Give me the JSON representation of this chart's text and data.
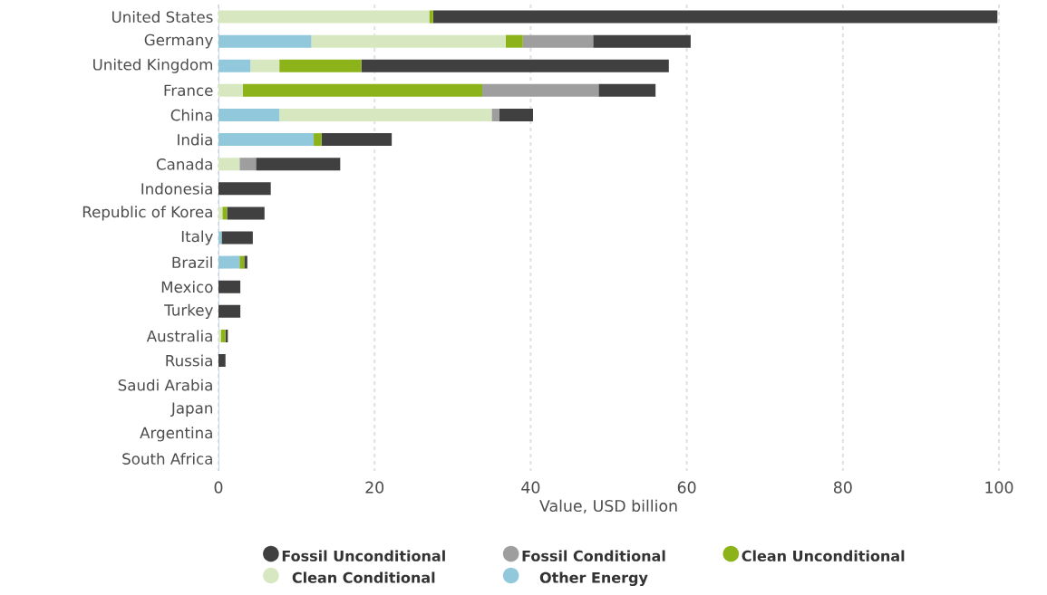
{
  "chart_data": {
    "type": "bar",
    "orientation": "horizontal",
    "stacked": true,
    "categories": [
      "United States",
      "Germany",
      "United Kingdom",
      "France",
      "China",
      "India",
      "Canada",
      "Indonesia",
      "Republic of Korea",
      "Italy",
      "Brazil",
      "Mexico",
      "Turkey",
      "Australia",
      "Russia",
      "Saudi Arabia",
      "Japan",
      "Argentina",
      "South Africa"
    ],
    "series": [
      {
        "name": "Other Energy",
        "color": "#92c8dc",
        "values": [
          0,
          11.9,
          4.1,
          0,
          7.8,
          12.2,
          0,
          0,
          0,
          0.4,
          2.7,
          0,
          0,
          0,
          0,
          0,
          0,
          0,
          0
        ]
      },
      {
        "name": "Clean Conditional",
        "color": "#d7e8c1",
        "values": [
          27.0,
          24.9,
          3.7,
          3.1,
          27.2,
          0,
          2.7,
          0,
          0.5,
          0,
          0,
          0,
          0,
          0.3,
          0,
          0,
          0,
          0,
          0
        ]
      },
      {
        "name": "Clean Unconditional",
        "color": "#8db31a",
        "values": [
          0.5,
          2.2,
          10.5,
          30.7,
          0,
          1.0,
          0,
          0,
          0.6,
          0,
          0.6,
          0,
          0,
          0.6,
          0,
          0,
          0,
          0,
          0
        ]
      },
      {
        "name": "Fossil Conditional",
        "color": "#9e9e9e",
        "values": [
          0,
          9.0,
          0,
          14.9,
          1.0,
          0,
          2.1,
          0,
          0,
          0,
          0,
          0,
          0,
          0,
          0,
          0,
          0,
          0,
          0
        ]
      },
      {
        "name": "Fossil Unconditional",
        "color": "#404040",
        "values": [
          72.3,
          12.5,
          39.4,
          7.3,
          4.3,
          9.0,
          10.8,
          6.7,
          4.8,
          4.0,
          0.4,
          2.8,
          2.8,
          0.3,
          0.9,
          0,
          0,
          0,
          0
        ]
      }
    ],
    "xlabel": "Value, USD billion",
    "xlim": [
      0,
      100
    ],
    "xticks": [
      0,
      20,
      40,
      60,
      80,
      100
    ],
    "grid": "x",
    "legend": "bottom"
  }
}
